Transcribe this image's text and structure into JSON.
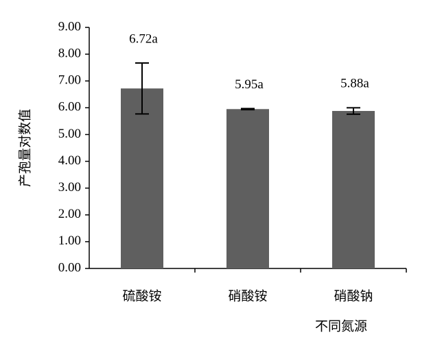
{
  "chart_data": {
    "type": "bar",
    "x_label": "不同氮源",
    "y_label": "产孢量对数值",
    "categories": [
      "硫酸铵",
      "硝酸铵",
      "硝酸钠"
    ],
    "values": [
      6.72,
      5.95,
      5.88
    ],
    "value_labels": [
      "6.72a",
      "5.95a",
      "5.88a"
    ],
    "errors": [
      0.95,
      0.02,
      0.12
    ],
    "color": "#5f5f5f",
    "ylim": [
      0,
      9
    ],
    "yticks": [
      {
        "value": 0,
        "label": "0.00"
      },
      {
        "value": 1,
        "label": "1.00"
      },
      {
        "value": 2,
        "label": "2.00"
      },
      {
        "value": 3,
        "label": "3.00"
      },
      {
        "value": 4,
        "label": "4.00"
      },
      {
        "value": 5,
        "label": "5.00"
      },
      {
        "value": 6,
        "label": "6.00"
      },
      {
        "value": 7,
        "label": "7.00"
      },
      {
        "value": 8,
        "label": "8.00"
      },
      {
        "value": 9,
        "label": "9.00"
      }
    ],
    "grid": false
  }
}
